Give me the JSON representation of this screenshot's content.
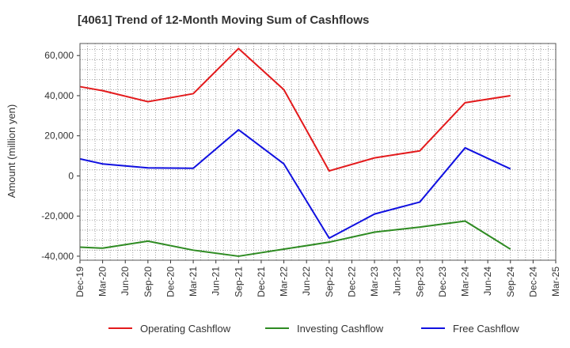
{
  "chart_data": {
    "type": "line",
    "title": "[4061]  Trend of 12-Month Moving Sum of Cashflows",
    "xlabel": "",
    "ylabel": "Amount (million yen)",
    "ylim": [
      -42000,
      66000
    ],
    "yticks": [
      -40000,
      -20000,
      0,
      20000,
      40000,
      60000
    ],
    "ytick_labels": [
      "-40,000",
      "-20,000",
      "0",
      "20,000",
      "40,000",
      "60,000"
    ],
    "x": [
      "Dec-19",
      "Mar-20",
      "Jun-20",
      "Sep-20",
      "Dec-20",
      "Mar-21",
      "Jun-21",
      "Sep-21",
      "Dec-21",
      "Mar-22",
      "Jun-22",
      "Sep-22",
      "Dec-22",
      "Mar-23",
      "Jun-23",
      "Sep-23",
      "Dec-23",
      "Mar-24",
      "Jun-24",
      "Sep-24",
      "Dec-24",
      "Mar-25"
    ],
    "grid": true,
    "legend_position": "bottom",
    "series": [
      {
        "name": "Operating Cashflow",
        "color": "#e31a1c",
        "points": [
          {
            "x": "Dec-19",
            "y": 44500
          },
          {
            "x": "Mar-20",
            "y": 42500
          },
          {
            "x": "Sep-20",
            "y": 37000
          },
          {
            "x": "Mar-21",
            "y": 41000
          },
          {
            "x": "Sep-21",
            "y": 63500
          },
          {
            "x": "Mar-22",
            "y": 43000
          },
          {
            "x": "Sep-22",
            "y": 2500
          },
          {
            "x": "Mar-23",
            "y": 9000
          },
          {
            "x": "Sep-23",
            "y": 12500
          },
          {
            "x": "Mar-24",
            "y": 36500
          },
          {
            "x": "Sep-24",
            "y": 40000
          }
        ]
      },
      {
        "name": "Investing Cashflow",
        "color": "#2e8b22",
        "points": [
          {
            "x": "Dec-19",
            "y": -35500
          },
          {
            "x": "Mar-20",
            "y": -36000
          },
          {
            "x": "Sep-20",
            "y": -32500
          },
          {
            "x": "Mar-21",
            "y": -37000
          },
          {
            "x": "Sep-21",
            "y": -40000
          },
          {
            "x": "Mar-22",
            "y": -36500
          },
          {
            "x": "Sep-22",
            "y": -33000
          },
          {
            "x": "Mar-23",
            "y": -28000
          },
          {
            "x": "Sep-23",
            "y": -25500
          },
          {
            "x": "Mar-24",
            "y": -22500
          },
          {
            "x": "Sep-24",
            "y": -36500
          }
        ]
      },
      {
        "name": "Free Cashflow",
        "color": "#1010e0",
        "points": [
          {
            "x": "Dec-19",
            "y": 8500
          },
          {
            "x": "Mar-20",
            "y": 6000
          },
          {
            "x": "Sep-20",
            "y": 4000
          },
          {
            "x": "Mar-21",
            "y": 3800
          },
          {
            "x": "Sep-21",
            "y": 23000
          },
          {
            "x": "Mar-22",
            "y": 6000
          },
          {
            "x": "Sep-22",
            "y": -31000
          },
          {
            "x": "Mar-23",
            "y": -19000
          },
          {
            "x": "Sep-23",
            "y": -13000
          },
          {
            "x": "Mar-24",
            "y": 14000
          },
          {
            "x": "Sep-24",
            "y": 3500
          }
        ]
      }
    ]
  }
}
